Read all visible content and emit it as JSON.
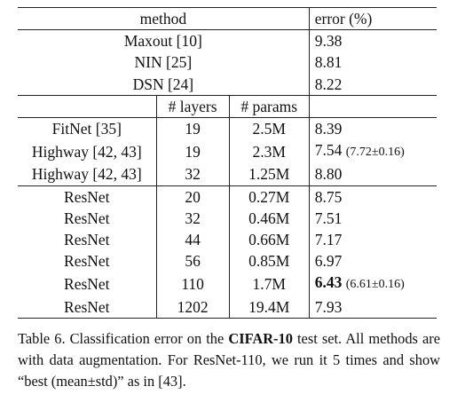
{
  "header": {
    "method": "method",
    "error": "error (%)"
  },
  "subheader": {
    "layers": "# layers",
    "params": "# params"
  },
  "group1": [
    {
      "method": "Maxout [10]",
      "error": "9.38"
    },
    {
      "method": "NIN [25]",
      "error": "8.81"
    },
    {
      "method": "DSN [24]",
      "error": "8.22"
    }
  ],
  "group2": [
    {
      "method": "FitNet [35]",
      "layers": "19",
      "params": "2.5M",
      "error": "8.39",
      "note": ""
    },
    {
      "method": "Highway [42, 43]",
      "layers": "19",
      "params": "2.3M",
      "error": "7.54",
      "note": "(7.72±0.16)"
    },
    {
      "method": "Highway [42, 43]",
      "layers": "32",
      "params": "1.25M",
      "error": "8.80",
      "note": ""
    }
  ],
  "group3": [
    {
      "method": "ResNet",
      "layers": "20",
      "params": "0.27M",
      "error": "8.75",
      "note": ""
    },
    {
      "method": "ResNet",
      "layers": "32",
      "params": "0.46M",
      "error": "7.51",
      "note": ""
    },
    {
      "method": "ResNet",
      "layers": "44",
      "params": "0.66M",
      "error": "7.17",
      "note": ""
    },
    {
      "method": "ResNet",
      "layers": "56",
      "params": "0.85M",
      "error": "6.97",
      "note": ""
    },
    {
      "method": "ResNet",
      "layers": "110",
      "params": "1.7M",
      "error": "6.43",
      "note": "(6.61±0.16)"
    },
    {
      "method": "ResNet",
      "layers": "1202",
      "params": "19.4M",
      "error": "7.93",
      "note": ""
    }
  ],
  "caption": {
    "prefix": "Table 6. Classification error on the ",
    "dataset": "CIFAR-10",
    "suffix": " test set. All methods are with data augmentation. For ResNet-110, we run it 5 times and show “best (mean±std)” as in [43]."
  }
}
